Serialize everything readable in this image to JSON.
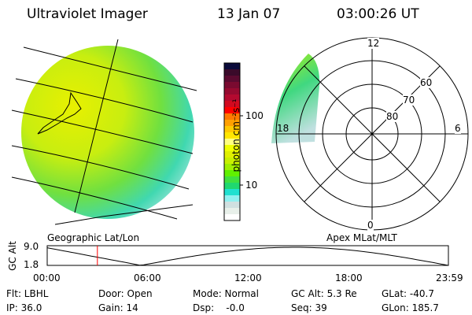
{
  "header": {
    "instrument": "Ultraviolet Imager",
    "date": "13 Jan 07",
    "time": "03:00:26 UT"
  },
  "left_panel": {
    "label": "Geographic Lat/Lon"
  },
  "right_panel": {
    "label": "Apex MLat/MLT",
    "mlt_labels": [
      "12",
      "18",
      "6",
      "0"
    ],
    "mlat_labels": [
      "60",
      "70",
      "80"
    ]
  },
  "colorbar": {
    "unit_label": "photon cm⁻²s⁻¹",
    "tick_labels": [
      "100",
      "10"
    ],
    "colors": [
      "#0a0a3a",
      "#3a0a2a",
      "#5a0a30",
      "#7a0a30",
      "#960a30",
      "#b40a30",
      "#d20a20",
      "#ff0000",
      "#ff7800",
      "#ffa000",
      "#ffc800",
      "#ffe600",
      "#ffff80",
      "#f0ff00",
      "#e0f000",
      "#c8f000",
      "#a0f000",
      "#60f000",
      "#40e040",
      "#20d870",
      "#20e0d0",
      "#90f0f0",
      "#d0e0e0",
      "#e8f0ea",
      "#ffffff"
    ]
  },
  "timeline": {
    "ylabel": "GC Alt",
    "y_ticks": [
      "9.0",
      "1.8"
    ],
    "x_ticks": [
      "00:00",
      "06:00",
      "12:00",
      "18:00",
      "23:59"
    ],
    "marker_time": "03:00",
    "marker_color": "#ff0000"
  },
  "status": {
    "flt": "Flt: LBHL",
    "ip": "IP: 36.0",
    "door": "Door: Open",
    "gain": "Gain: 14",
    "mode": "Mode: Normal",
    "dsp": "Dsp:    -0.0",
    "gcalt": "GC Alt: 5.3 Re",
    "seq": "Seq: 39",
    "glat": "GLat: -40.7",
    "glon": "GLon: 185.7"
  }
}
